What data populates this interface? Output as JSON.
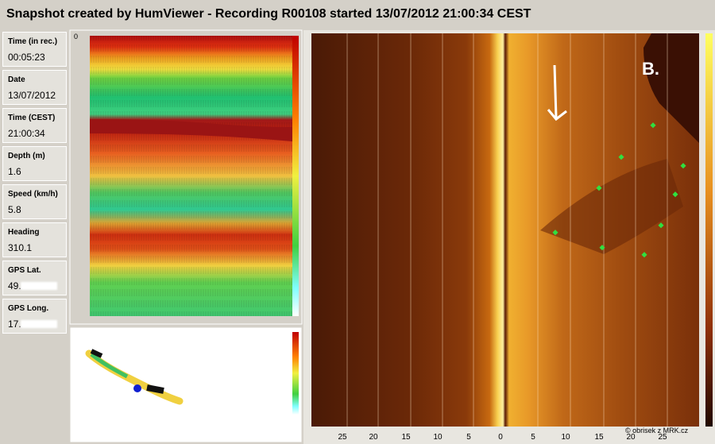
{
  "header": {
    "title": "Snapshot created by HumViewer - Recording R00108 started 13/07/2012 21:00:34 CEST"
  },
  "fields": [
    {
      "label": "Time (in rec.)",
      "value": "00:05:23"
    },
    {
      "label": "Date",
      "value": "13/07/2012"
    },
    {
      "label": "Time (CEST)",
      "value": "21:00:34"
    },
    {
      "label": "Depth (m)",
      "value": "1.6"
    },
    {
      "label": "Speed (km/h)",
      "value": "5.8"
    },
    {
      "label": "Heading",
      "value": "310.1"
    },
    {
      "label": "GPS Lat.",
      "value": "49."
    },
    {
      "label": "GPS Long.",
      "value": "17."
    }
  ],
  "echogram": {
    "depth_label": "0"
  },
  "sidescan": {
    "scale": [
      "25",
      "20",
      "15",
      "10",
      "5",
      "0",
      "5",
      "10",
      "15",
      "20",
      "25"
    ],
    "annotation": "B."
  },
  "watermark": "© obrisek z MRK.cz"
}
